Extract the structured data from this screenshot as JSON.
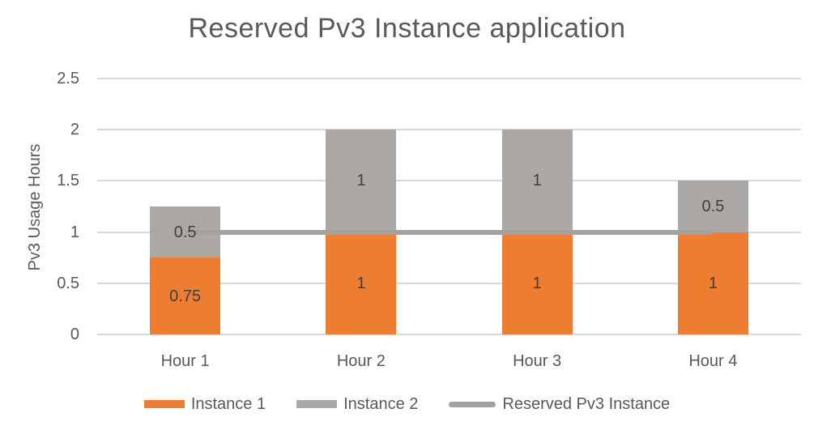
{
  "colors": {
    "instance1": "#ED7D31",
    "instance2": "#ABA8A6",
    "reserved_line": "#A2A2A2",
    "gridline": "#D9D9D9",
    "axis_text": "#595959",
    "data_label_text": "#3F3F3F",
    "title_text": "#595959"
  },
  "chart_data": {
    "type": "bar",
    "stacked": true,
    "title": "Reserved Pv3 Instance application",
    "xlabel": "",
    "ylabel": "Pv3 Usage Hours",
    "categories": [
      "Hour 1",
      "Hour 2",
      "Hour 3",
      "Hour 4"
    ],
    "series": [
      {
        "name": "Instance 1",
        "type": "bar",
        "color": "#ED7D31",
        "values": [
          0.75,
          1,
          1,
          1
        ],
        "labels": [
          "0.75",
          "1",
          "1",
          "1"
        ]
      },
      {
        "name": "Instance 2",
        "type": "bar",
        "color": "#ABA8A6",
        "values": [
          0.5,
          1,
          1,
          0.5
        ],
        "labels": [
          "0.5",
          "1",
          "1",
          "0.5"
        ]
      },
      {
        "name": "Reserved Pv3 Instance",
        "type": "line",
        "color": "#A2A2A2",
        "values": [
          1,
          1,
          1,
          1
        ]
      }
    ],
    "ylim": [
      0,
      2.5
    ],
    "yticks": [
      0,
      0.5,
      1,
      1.5,
      2,
      2.5
    ],
    "ytick_labels": [
      "0",
      "0.5",
      "1",
      "1.5",
      "2",
      "2.5"
    ],
    "grid": true,
    "legend_position": "bottom"
  },
  "legend": {
    "items": [
      {
        "label": "Instance 1",
        "swatch": "rect",
        "color": "#ED7D31"
      },
      {
        "label": "Instance 2",
        "swatch": "rect",
        "color": "#ABA8A6"
      },
      {
        "label": "Reserved Pv3 Instance",
        "swatch": "line",
        "color": "#A2A2A2"
      }
    ]
  }
}
